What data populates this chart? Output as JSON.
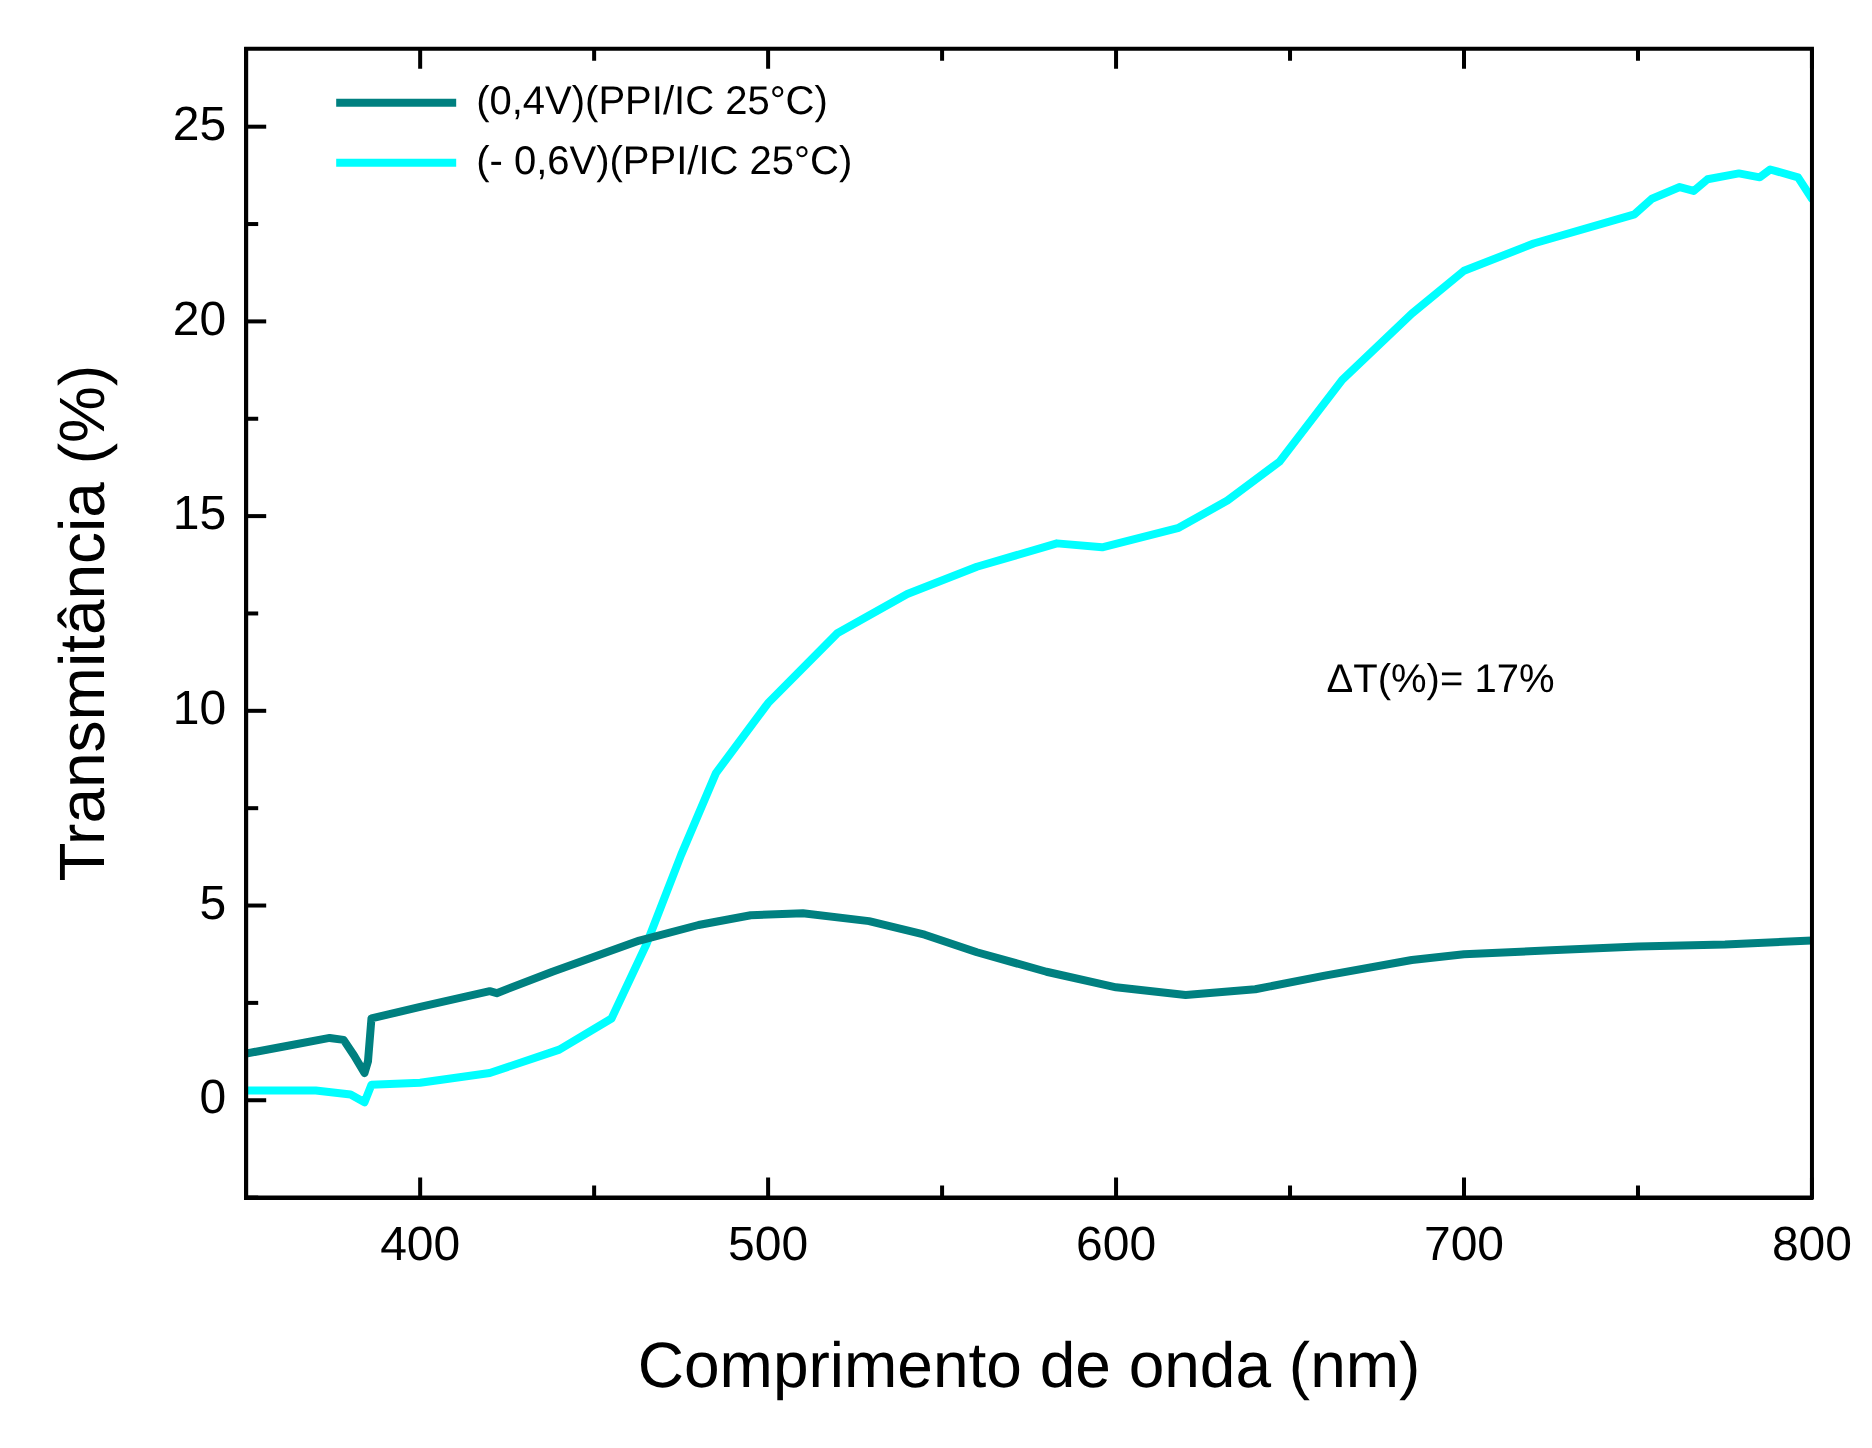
{
  "chart_data": {
    "type": "line",
    "xlabel": "Comprimento de onda (nm)",
    "ylabel": "Transmitância (%)",
    "xlim": [
      350,
      800
    ],
    "xticks": [
      400,
      {
        "value": 450,
        "label": null
      },
      500,
      {
        "value": 550,
        "label": null
      },
      600,
      {
        "value": 650,
        "label": null
      },
      700,
      {
        "value": 750,
        "label": null
      },
      800
    ],
    "ylim": [
      -2.5,
      27
    ],
    "yticks": [
      {
        "value": -2.5,
        "label": null
      },
      0,
      {
        "value": 2.5,
        "label": null
      },
      5,
      {
        "value": 7.5,
        "label": null
      },
      10,
      {
        "value": 12.5,
        "label": null
      },
      15,
      {
        "value": 17.5,
        "label": null
      },
      20,
      {
        "value": 22.5,
        "label": null
      },
      25
    ],
    "legend": "top left",
    "grid": false,
    "marker": "none",
    "line_style": "solid",
    "annotations": [
      "ΔT(%)= 17%"
    ],
    "series": [
      {
        "name": "(0,4V)(PPI/IC 25°C)",
        "color": "#008080",
        "x": [
          350,
          362,
          374,
          378,
          381,
          384,
          385,
          386,
          400,
          420,
          422,
          438,
          463,
          480,
          495,
          510,
          529,
          545,
          560,
          580,
          600,
          620,
          640,
          660,
          685,
          700,
          725,
          750,
          775,
          800
        ],
        "values": [
          1.2,
          1.4,
          1.6,
          1.55,
          1.15,
          0.7,
          1.0,
          2.1,
          2.4,
          2.8,
          2.75,
          3.3,
          4.1,
          4.5,
          4.75,
          4.8,
          4.6,
          4.25,
          3.8,
          3.3,
          2.9,
          2.7,
          2.85,
          3.2,
          3.6,
          3.75,
          3.85,
          3.95,
          4.0,
          4.1
        ]
      },
      {
        "name": "(- 0,6V)(PPI/IC 25°C)",
        "color": "#00ffff",
        "x": [
          350,
          370,
          380,
          384,
          386,
          400,
          420,
          440,
          455,
          465,
          475,
          485,
          500,
          520,
          540,
          560,
          583,
          596,
          618,
          632,
          647,
          665,
          685,
          700,
          720,
          749,
          754,
          762,
          766,
          770,
          779,
          785,
          788,
          796,
          800
        ],
        "values": [
          0.25,
          0.25,
          0.15,
          -0.05,
          0.4,
          0.45,
          0.7,
          1.3,
          2.1,
          4.0,
          6.3,
          8.4,
          10.2,
          12.0,
          13.0,
          13.7,
          14.3,
          14.2,
          14.7,
          15.4,
          16.4,
          18.5,
          20.2,
          21.3,
          22.0,
          22.75,
          23.15,
          23.45,
          23.35,
          23.65,
          23.8,
          23.7,
          23.9,
          23.7,
          23.15
        ]
      }
    ]
  }
}
